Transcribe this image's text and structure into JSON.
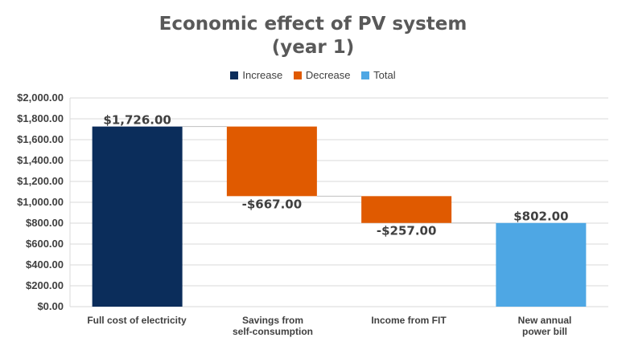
{
  "chart_data": {
    "type": "waterfall",
    "title_line1": "Economic effect of PV system",
    "title_line2": "(year 1)",
    "legend": [
      {
        "label": "Increase",
        "color": "#0b2d5b"
      },
      {
        "label": "Decrease",
        "color": "#e05a00"
      },
      {
        "label": "Total",
        "color": "#4ea7e4"
      }
    ],
    "categories": [
      {
        "line1": "Full cost of electricity",
        "line2": ""
      },
      {
        "line1": "Savings from",
        "line2": "self-consumption"
      },
      {
        "line1": "Income from FIT",
        "line2": ""
      },
      {
        "line1": "New annual",
        "line2": "power bill"
      }
    ],
    "bars": [
      {
        "kind": "increase",
        "start": 0,
        "end": 1726,
        "label": "$1,726.00"
      },
      {
        "kind": "decrease",
        "start": 1726,
        "end": 1059,
        "label": "-$667.00"
      },
      {
        "kind": "decrease",
        "start": 1059,
        "end": 802,
        "label": "-$257.00"
      },
      {
        "kind": "total",
        "start": 0,
        "end": 802,
        "label": "$802.00"
      }
    ],
    "ylim": [
      0,
      2000
    ],
    "yticks": [
      "$0.00",
      "$200.00",
      "$400.00",
      "$600.00",
      "$800.00",
      "$1,000.00",
      "$1,200.00",
      "$1,400.00",
      "$1,600.00",
      "$1,800.00",
      "$2,000.00"
    ],
    "grid": true,
    "legend_position": "top-center"
  }
}
